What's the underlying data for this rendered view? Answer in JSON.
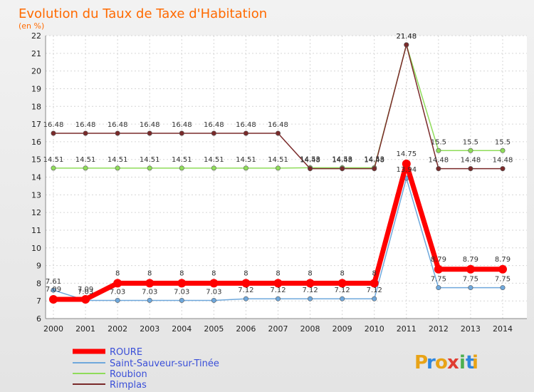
{
  "chart_data": {
    "type": "line",
    "title": "Evolution du Taux de Taxe d'Habitation",
    "subtitle": "(en %)",
    "x": [
      "2000",
      "2001",
      "2002",
      "2003",
      "2004",
      "2005",
      "2006",
      "2007",
      "2008",
      "2009",
      "2010",
      "2011",
      "2012",
      "2013",
      "2014"
    ],
    "ylim": [
      6,
      22
    ],
    "yticks": [
      6,
      7,
      8,
      9,
      10,
      11,
      12,
      13,
      14,
      15,
      16,
      17,
      18,
      19,
      20,
      21,
      22
    ],
    "grid": true,
    "legend_position": "bottom-left",
    "series": [
      {
        "name": "ROURE",
        "color": "#ff0000",
        "values": [
          7.09,
          7.09,
          8,
          8,
          8,
          8,
          8,
          8,
          8,
          8,
          8,
          14.75,
          8.79,
          8.79,
          8.79
        ]
      },
      {
        "name": "Saint-Sauveur-sur-Tinée",
        "color": "#6fa8dc",
        "values": [
          7.61,
          7.03,
          7.03,
          7.03,
          7.03,
          7.03,
          7.12,
          7.12,
          7.12,
          7.12,
          7.12,
          13.94,
          7.75,
          7.75,
          7.75
        ]
      },
      {
        "name": "Roubion",
        "color": "#8fdc5a",
        "values": [
          14.51,
          14.51,
          14.51,
          14.51,
          14.51,
          14.51,
          14.51,
          14.51,
          14.53,
          14.53,
          14.53,
          21.48,
          15.5,
          15.5,
          15.5
        ]
      },
      {
        "name": "Rimplas",
        "color": "#7a2a2a",
        "values": [
          16.48,
          16.48,
          16.48,
          16.48,
          16.48,
          16.48,
          16.48,
          16.48,
          14.48,
          14.48,
          14.48,
          21.48,
          14.48,
          14.48,
          14.48
        ]
      }
    ]
  },
  "brand": {
    "letters": [
      "P",
      "r",
      "o",
      "x",
      "i",
      "t",
      "i"
    ],
    "colors": [
      "#e8a317",
      "#2e86de",
      "#e8a317",
      "#e03c31",
      "#4caf50",
      "#2e86de",
      "#e8a317"
    ]
  }
}
